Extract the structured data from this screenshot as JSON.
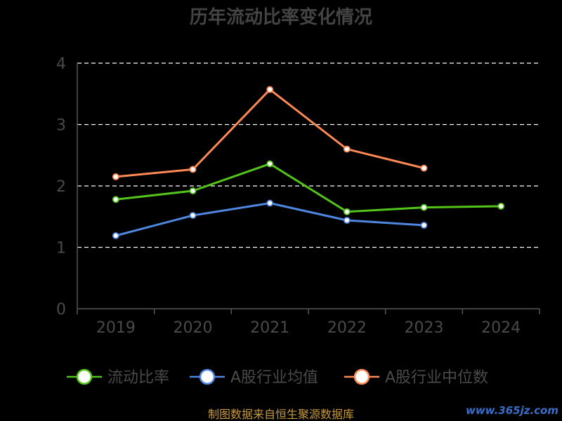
{
  "chart_data": {
    "type": "line",
    "title": "历年流动比率变化情况",
    "categories": [
      "2019",
      "2020",
      "2021",
      "2022",
      "2023",
      "2024"
    ],
    "ylim": [
      0,
      4
    ],
    "yticks": [
      "0",
      "1",
      "2",
      "3",
      "4"
    ],
    "grid": true,
    "legend_position": "bottom",
    "series": [
      {
        "name": "流动比率",
        "color": "#52c41a",
        "values": [
          1.78,
          1.92,
          2.36,
          1.58,
          1.65,
          1.67
        ]
      },
      {
        "name": "A股行业均值",
        "color": "#4f86e0",
        "values": [
          1.19,
          1.52,
          1.72,
          1.44,
          1.36,
          null
        ]
      },
      {
        "name": "A股行业中位数",
        "color": "#ff8a55",
        "values": [
          2.15,
          2.27,
          3.57,
          2.6,
          2.29,
          null
        ]
      }
    ]
  },
  "footer": {
    "source": "制图数据来自恒生聚源数据库",
    "watermark": "www.365jz.com"
  }
}
